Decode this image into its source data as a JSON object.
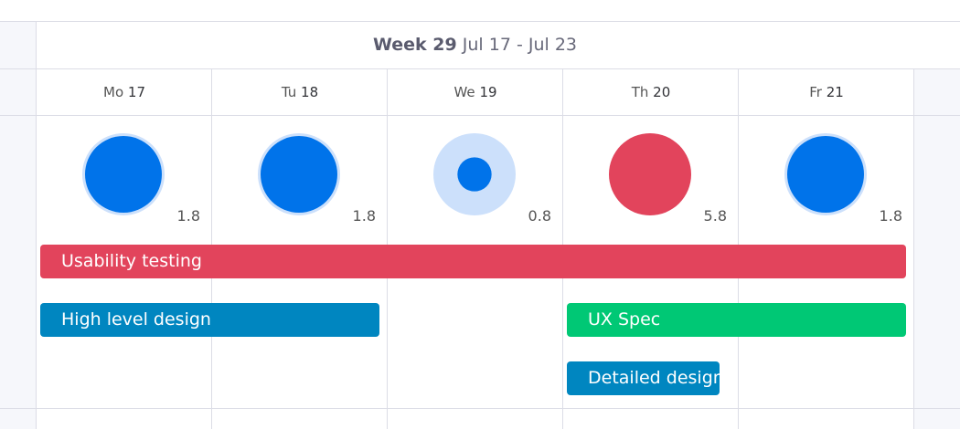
{
  "header": {
    "week": "Week 29",
    "range": "Jul 17 - Jul 23"
  },
  "days": [
    {
      "day": "Mo",
      "date": "17",
      "workload": 1.8,
      "color": "#0073ea"
    },
    {
      "day": "Tu",
      "date": "18",
      "workload": 1.8,
      "color": "#0073ea"
    },
    {
      "day": "We",
      "date": "19",
      "workload": 0.8,
      "color": "#0073ea"
    },
    {
      "day": "Th",
      "date": "20",
      "workload": 5.8,
      "color": "#e2445c"
    },
    {
      "day": "Fr",
      "date": "21",
      "workload": 1.8,
      "color": "#0073ea"
    }
  ],
  "tasks": [
    {
      "name": "Usability testing",
      "color": "#e2445c"
    },
    {
      "name": "High level design",
      "color": "#0086c0"
    },
    {
      "name": "UX Spec",
      "color": "#00c875"
    },
    {
      "name": "Detailed design",
      "color": "#0086c0"
    }
  ]
}
